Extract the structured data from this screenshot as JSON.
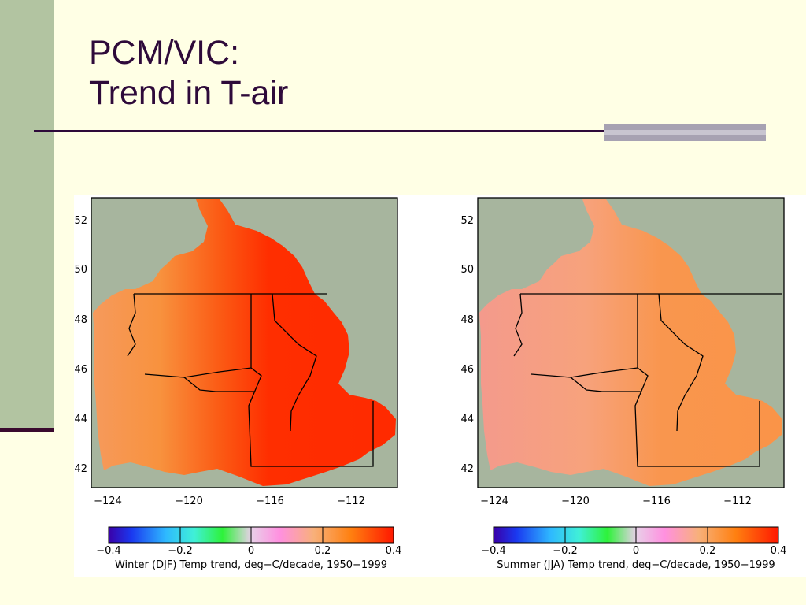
{
  "slide": {
    "title_line1": "PCM/VIC:",
    "title_line2": "Trend in T-air"
  },
  "chart_data": [
    {
      "type": "heatmap",
      "title": "",
      "region": "US Pacific Northwest / Columbia River basin",
      "xticks": [
        -124,
        -120,
        -116,
        -112
      ],
      "xtick_labels": [
        "−124",
        "−120",
        "−116",
        "−112"
      ],
      "yticks": [
        42,
        44,
        46,
        48,
        50,
        52
      ],
      "ytick_labels": [
        "42",
        "44",
        "46",
        "48",
        "50",
        "52"
      ],
      "xlim": [
        -125.2,
        -110.2
      ],
      "ylim": [
        41.4,
        53.0
      ],
      "colorbar": {
        "range": [
          -0.4,
          0.4
        ],
        "tick_values": [
          -0.4,
          -0.2,
          0,
          0.2,
          0.4
        ],
        "tick_labels": [
          "−0.4",
          "−0.2",
          "0",
          "0.2",
          "0.4"
        ],
        "caption": "Winter (DJF) Temp trend, deg−C/decade, 1950−1999"
      },
      "field_summary": {
        "west_coast": 0.24,
        "central_basin": 0.33,
        "east_basin": 0.38
      },
      "colors": {
        "background": "#A7B59E",
        "low_trend": "#F59450",
        "high_trend": "#FF2A00"
      }
    },
    {
      "type": "heatmap",
      "title": "",
      "region": "US Pacific Northwest / Columbia River basin",
      "xticks": [
        -124,
        -120,
        -116,
        -112
      ],
      "xtick_labels": [
        "−124",
        "−120",
        "−116",
        "−112"
      ],
      "yticks": [
        42,
        44,
        46,
        48,
        50,
        52
      ],
      "ytick_labels": [
        "42",
        "44",
        "46",
        "48",
        "50",
        "52"
      ],
      "xlim": [
        -125.2,
        -110.2
      ],
      "ylim": [
        41.4,
        53.0
      ],
      "colorbar": {
        "range": [
          -0.4,
          0.4
        ],
        "tick_values": [
          -0.4,
          -0.2,
          0,
          0.2,
          0.4
        ],
        "tick_labels": [
          "−0.4",
          "−0.2",
          "0",
          "0.2",
          "0.4"
        ],
        "caption": "Summer (JJA) Temp trend, deg−C/decade, 1950−1999"
      },
      "field_summary": {
        "west_coast": 0.17,
        "central_basin": 0.2,
        "east_basin": 0.23
      },
      "colors": {
        "background": "#A7B59E",
        "low_trend": "#F4A08A",
        "high_trend": "#F9924A"
      }
    }
  ]
}
